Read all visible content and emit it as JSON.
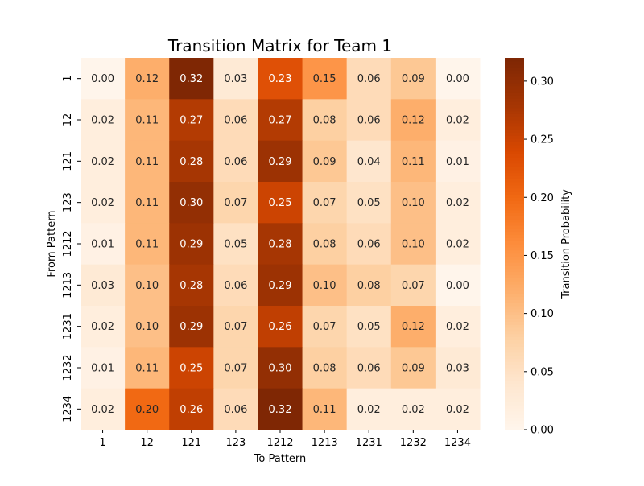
{
  "chart_data": {
    "type": "heatmap",
    "title": "Transition Matrix for Team 1",
    "xlabel": "To Pattern",
    "ylabel": "From Pattern",
    "x_categories": [
      "1",
      "12",
      "121",
      "123",
      "1212",
      "1213",
      "1231",
      "1232",
      "1234"
    ],
    "y_categories": [
      "1",
      "12",
      "121",
      "123",
      "1212",
      "1213",
      "1231",
      "1232",
      "1234"
    ],
    "values": [
      [
        0.0,
        0.12,
        0.32,
        0.03,
        0.23,
        0.15,
        0.06,
        0.09,
        0.0
      ],
      [
        0.02,
        0.11,
        0.27,
        0.06,
        0.27,
        0.08,
        0.06,
        0.12,
        0.02
      ],
      [
        0.02,
        0.11,
        0.28,
        0.06,
        0.29,
        0.09,
        0.04,
        0.11,
        0.01
      ],
      [
        0.02,
        0.11,
        0.3,
        0.07,
        0.25,
        0.07,
        0.05,
        0.1,
        0.02
      ],
      [
        0.01,
        0.11,
        0.29,
        0.05,
        0.28,
        0.08,
        0.06,
        0.1,
        0.02
      ],
      [
        0.03,
        0.1,
        0.28,
        0.06,
        0.29,
        0.1,
        0.08,
        0.07,
        0.0
      ],
      [
        0.02,
        0.1,
        0.29,
        0.07,
        0.26,
        0.07,
        0.05,
        0.12,
        0.02
      ],
      [
        0.01,
        0.11,
        0.25,
        0.07,
        0.3,
        0.08,
        0.06,
        0.09,
        0.03
      ],
      [
        0.02,
        0.2,
        0.26,
        0.06,
        0.32,
        0.11,
        0.02,
        0.02,
        0.02
      ]
    ],
    "colorbar": {
      "label": "Transition Probability",
      "range": [
        0.0,
        0.32
      ],
      "ticks": [
        "0.00",
        "0.05",
        "0.10",
        "0.15",
        "0.20",
        "0.25",
        "0.30"
      ],
      "colormap": "Oranges",
      "low_color": "#fff5eb",
      "high_color": "#7f2704"
    },
    "grid": false
  }
}
